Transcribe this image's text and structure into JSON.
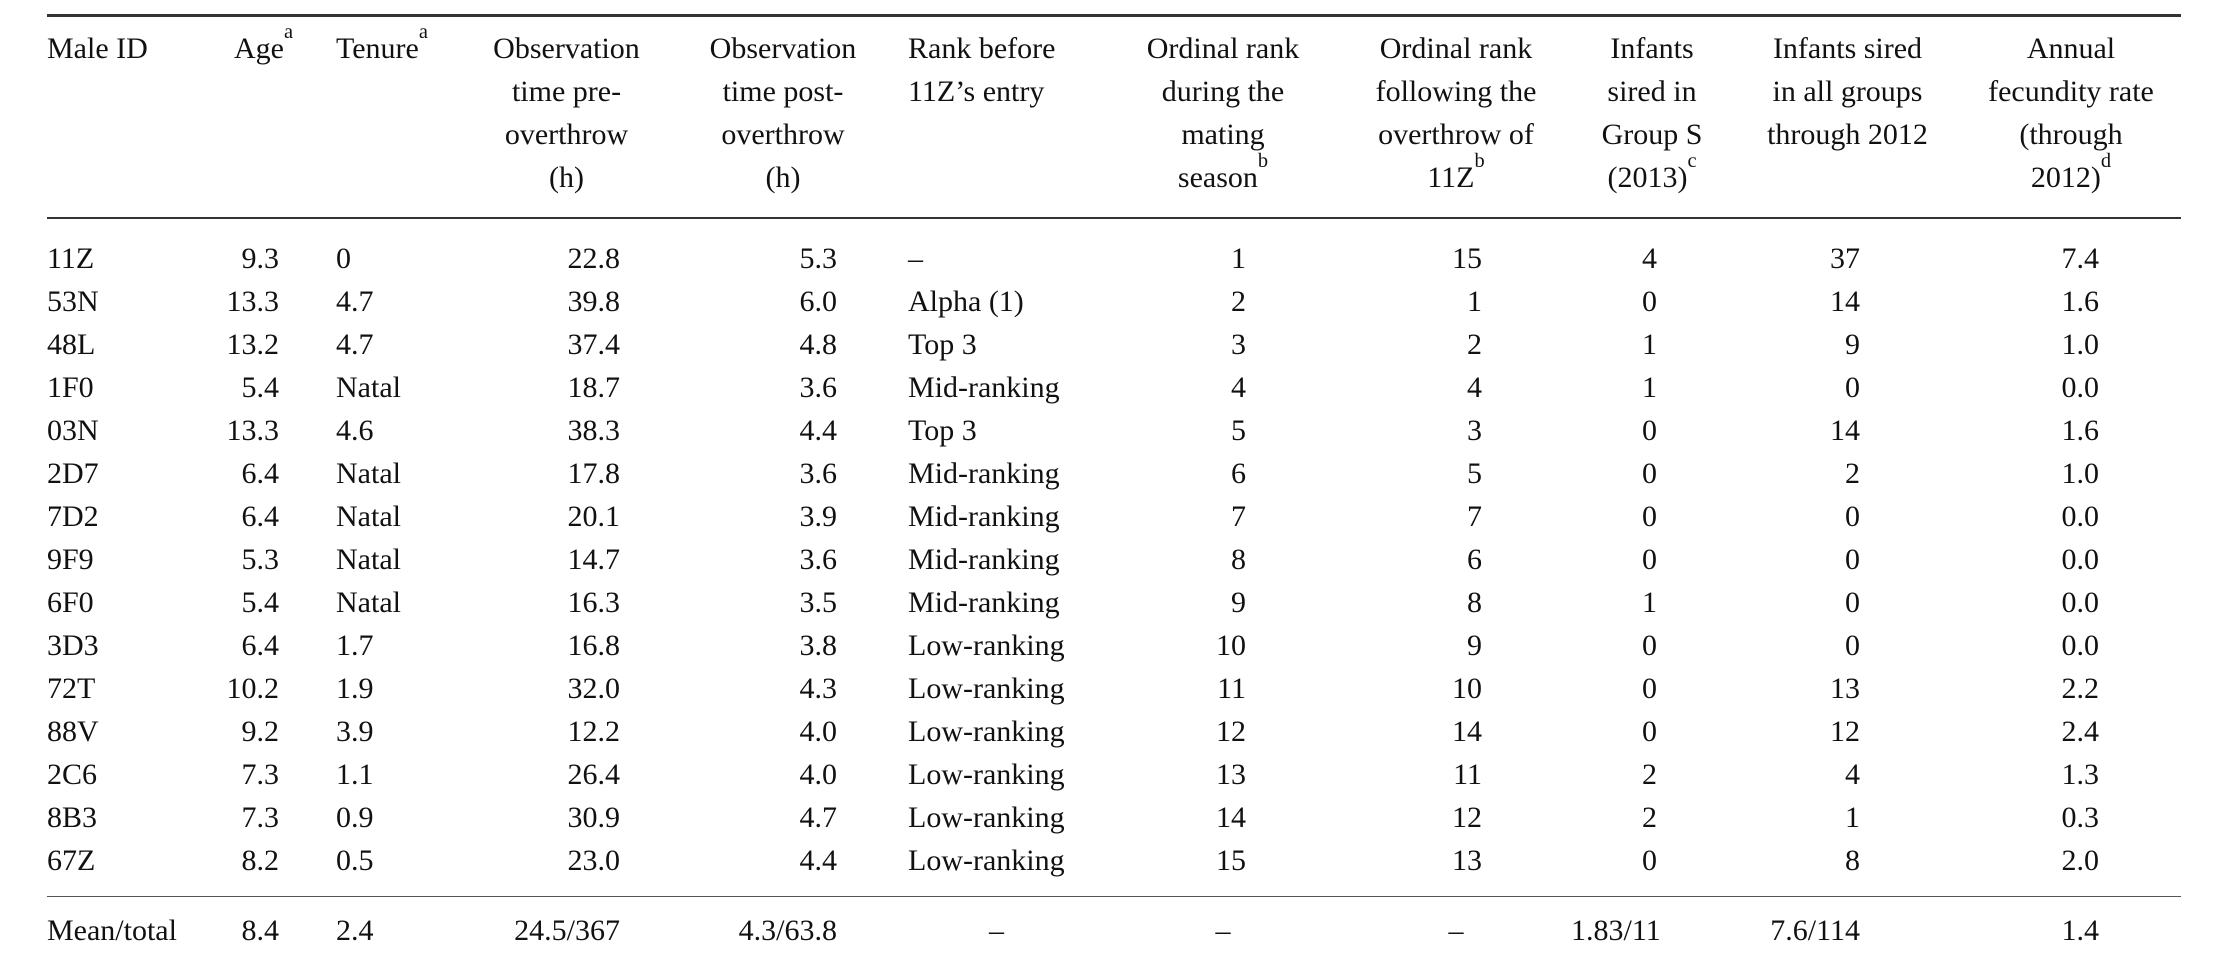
{
  "colors": {
    "background": "#ffffff",
    "text": "#111111",
    "rule": "#333333"
  },
  "table": {
    "columns": [
      {
        "id": "male-id",
        "header": "Male ID"
      },
      {
        "id": "age",
        "header": "Age^a"
      },
      {
        "id": "tenure",
        "header": "Tenure^a"
      },
      {
        "id": "obs-time-pre",
        "header": "Observation\ntime pre-\noverthrow\n(h)"
      },
      {
        "id": "obs-time-post",
        "header": "Observation\ntime post-\noverthrow\n(h)"
      },
      {
        "id": "rank-before-entry",
        "header": "Rank before\n11Z’s entry"
      },
      {
        "id": "ordinal-rank-mating",
        "header": "Ordinal rank\nduring the\nmating\nseason^b"
      },
      {
        "id": "ordinal-rank-overthrow",
        "header": "Ordinal rank\nfollowing the\noverthrow of\n11Z^b"
      },
      {
        "id": "infants-group-s",
        "header": "Infants\nsired in\nGroup S\n(2013)^c"
      },
      {
        "id": "infants-all-groups",
        "header": "Infants sired\nin all groups\nthrough 2012"
      },
      {
        "id": "annual-fecundity",
        "header": "Annual\nfecundity rate\n(through\n2012)^d"
      }
    ],
    "rows": [
      [
        "11Z",
        "9.3",
        "0",
        "22.8",
        "5.3",
        "–",
        "1",
        "15",
        "4",
        "37",
        "7.4"
      ],
      [
        "53N",
        "13.3",
        "4.7",
        "39.8",
        "6.0",
        "Alpha (1)",
        "2",
        "1",
        "0",
        "14",
        "1.6"
      ],
      [
        "48L",
        "13.2",
        "4.7",
        "37.4",
        "4.8",
        "Top 3",
        "3",
        "2",
        "1",
        "9",
        "1.0"
      ],
      [
        "1F0",
        "5.4",
        "Natal",
        "18.7",
        "3.6",
        "Mid-ranking",
        "4",
        "4",
        "1",
        "0",
        "0.0"
      ],
      [
        "03N",
        "13.3",
        "4.6",
        "38.3",
        "4.4",
        "Top 3",
        "5",
        "3",
        "0",
        "14",
        "1.6"
      ],
      [
        "2D7",
        "6.4",
        "Natal",
        "17.8",
        "3.6",
        "Mid-ranking",
        "6",
        "5",
        "0",
        "2",
        "1.0"
      ],
      [
        "7D2",
        "6.4",
        "Natal",
        "20.1",
        "3.9",
        "Mid-ranking",
        "7",
        "7",
        "0",
        "0",
        "0.0"
      ],
      [
        "9F9",
        "5.3",
        "Natal",
        "14.7",
        "3.6",
        "Mid-ranking",
        "8",
        "6",
        "0",
        "0",
        "0.0"
      ],
      [
        "6F0",
        "5.4",
        "Natal",
        "16.3",
        "3.5",
        "Mid-ranking",
        "9",
        "8",
        "1",
        "0",
        "0.0"
      ],
      [
        "3D3",
        "6.4",
        "1.7",
        "16.8",
        "3.8",
        "Low-ranking",
        "10",
        "9",
        "0",
        "0",
        "0.0"
      ],
      [
        "72T",
        "10.2",
        "1.9",
        "32.0",
        "4.3",
        "Low-ranking",
        "11",
        "10",
        "0",
        "13",
        "2.2"
      ],
      [
        "88V",
        "9.2",
        "3.9",
        "12.2",
        "4.0",
        "Low-ranking",
        "12",
        "14",
        "0",
        "12",
        "2.4"
      ],
      [
        "2C6",
        "7.3",
        "1.1",
        "26.4",
        "4.0",
        "Low-ranking",
        "13",
        "11",
        "2",
        "4",
        "1.3"
      ],
      [
        "8B3",
        "7.3",
        "0.9",
        "30.9",
        "4.7",
        "Low-ranking",
        "14",
        "12",
        "2",
        "1",
        "0.3"
      ],
      [
        "67Z",
        "8.2",
        "0.5",
        "23.0",
        "4.4",
        "Low-ranking",
        "15",
        "13",
        "0",
        "8",
        "2.0"
      ]
    ],
    "footer": [
      "Mean/total",
      "8.4",
      "2.4",
      "24.5/367",
      "4.3/63.8",
      "–",
      "–",
      "–",
      "1.83/11",
      "7.6/114",
      "1.4"
    ]
  }
}
